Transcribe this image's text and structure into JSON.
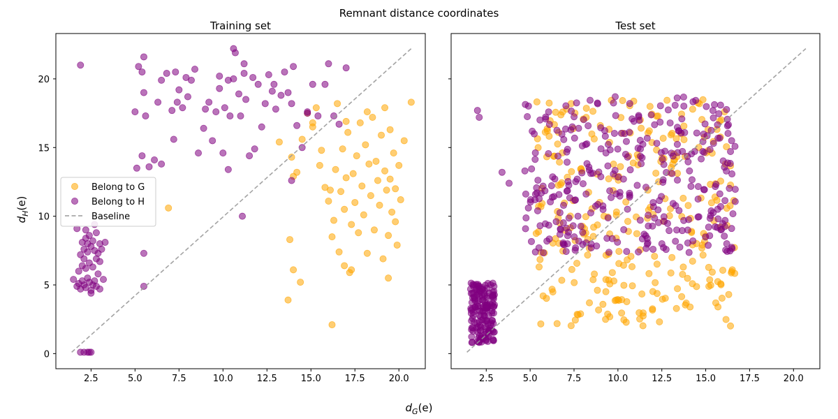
{
  "figure": {
    "suptitle": "Remnant distance coordinates",
    "xlabel": "d_G(e)",
    "ylabel": "d_H(e)"
  },
  "legend": {
    "placement": "center-left",
    "entries": [
      {
        "label": "Belong to G",
        "color": "#FFA500",
        "kind": "marker"
      },
      {
        "label": "Belong to H",
        "color": "#800080",
        "kind": "marker"
      },
      {
        "label": "Baseline",
        "color": "#999999",
        "kind": "dashed-line"
      }
    ]
  },
  "chart_data": [
    {
      "type": "scatter",
      "title": "Training set",
      "xlim": [
        0.5,
        21.5
      ],
      "ylim": [
        -1.1,
        23.3
      ],
      "xticks": [
        "2.5",
        "5.0",
        "7.5",
        "10.0",
        "12.5",
        "15.0",
        "17.5",
        "20.0"
      ],
      "yticks": [
        "0",
        "5",
        "10",
        "15",
        "20"
      ],
      "baseline": {
        "x": [
          1.4,
          20.7
        ],
        "y": [
          0.1,
          22.2
        ]
      },
      "series": [
        {
          "name": "Belong to G",
          "color": "#FFA500",
          "points": [
            [
              6.9,
              10.6
            ],
            [
              13.7,
              3.9
            ],
            [
              13.8,
              8.3
            ],
            [
              14.0,
              6.1
            ],
            [
              14.4,
              5.2
            ],
            [
              16.2,
              2.1
            ],
            [
              13.2,
              15.4
            ],
            [
              13.9,
              14.3
            ],
            [
              14.0,
              12.9
            ],
            [
              14.5,
              15.6
            ],
            [
              14.2,
              13.2
            ],
            [
              14.8,
              17.5
            ],
            [
              15.1,
              16.5
            ],
            [
              15.3,
              17.9
            ],
            [
              15.5,
              13.7
            ],
            [
              15.6,
              14.8
            ],
            [
              15.8,
              12.1
            ],
            [
              16.0,
              11.1
            ],
            [
              16.2,
              8.5
            ],
            [
              16.3,
              9.7
            ],
            [
              16.4,
              13.4
            ],
            [
              16.5,
              18.2
            ],
            [
              16.6,
              7.4
            ],
            [
              16.7,
              11.8
            ],
            [
              16.8,
              14.9
            ],
            [
              16.9,
              10.5
            ],
            [
              17.0,
              12.8
            ],
            [
              17.1,
              16.1
            ],
            [
              17.2,
              5.9
            ],
            [
              17.3,
              9.4
            ],
            [
              17.4,
              13.1
            ],
            [
              17.5,
              11.0
            ],
            [
              17.6,
              14.4
            ],
            [
              17.7,
              8.8
            ],
            [
              17.8,
              16.8
            ],
            [
              17.9,
              12.2
            ],
            [
              18.0,
              10.1
            ],
            [
              18.1,
              15.2
            ],
            [
              18.2,
              7.3
            ],
            [
              18.3,
              13.8
            ],
            [
              18.4,
              11.5
            ],
            [
              18.5,
              17.2
            ],
            [
              18.6,
              9.0
            ],
            [
              18.7,
              14.0
            ],
            [
              18.8,
              12.6
            ],
            [
              18.9,
              10.8
            ],
            [
              19.0,
              15.9
            ],
            [
              19.1,
              6.9
            ],
            [
              19.2,
              13.3
            ],
            [
              19.3,
              11.9
            ],
            [
              19.4,
              8.6
            ],
            [
              19.5,
              16.3
            ],
            [
              19.6,
              10.3
            ],
            [
              19.7,
              14.6
            ],
            [
              19.8,
              12.0
            ],
            [
              19.9,
              7.9
            ],
            [
              20.0,
              13.7
            ],
            [
              20.1,
              11.2
            ],
            [
              20.3,
              15.5
            ],
            [
              20.7,
              18.3
            ],
            [
              19.4,
              5.5
            ],
            [
              17.0,
              16.9
            ],
            [
              18.2,
              17.6
            ],
            [
              16.9,
              6.4
            ],
            [
              17.3,
              6.1
            ],
            [
              19.2,
              17.9
            ],
            [
              19.8,
              9.6
            ],
            [
              16.1,
              11.9
            ],
            [
              15.1,
              16.8
            ],
            [
              19.5,
              12.7
            ]
          ]
        },
        {
          "name": "Belong to H",
          "color": "#800080",
          "points": [
            [
              1.9,
              21.0
            ],
            [
              1.7,
              9.1
            ],
            [
              1.5,
              5.4
            ],
            [
              2.1,
              0.1
            ],
            [
              2.3,
              0.1
            ],
            [
              2.5,
              0.1
            ],
            [
              1.9,
              0.1
            ],
            [
              2.4,
              0.1
            ],
            [
              1.7,
              4.9
            ],
            [
              1.8,
              5.1
            ],
            [
              1.9,
              4.7
            ],
            [
              2.0,
              5.3
            ],
            [
              2.1,
              5.0
            ],
            [
              2.2,
              4.8
            ],
            [
              2.3,
              5.5
            ],
            [
              2.4,
              5.2
            ],
            [
              2.5,
              4.6
            ],
            [
              2.6,
              5.0
            ],
            [
              2.7,
              5.3
            ],
            [
              2.8,
              4.9
            ],
            [
              3.0,
              4.7
            ],
            [
              3.2,
              5.4
            ],
            [
              1.8,
              6.0
            ],
            [
              2.0,
              6.4
            ],
            [
              2.2,
              6.2
            ],
            [
              2.4,
              6.6
            ],
            [
              2.6,
              6.3
            ],
            [
              2.8,
              6.9
            ],
            [
              3.0,
              6.7
            ],
            [
              1.9,
              7.2
            ],
            [
              2.1,
              7.6
            ],
            [
              2.3,
              7.4
            ],
            [
              2.5,
              7.8
            ],
            [
              2.7,
              7.5
            ],
            [
              2.9,
              7.3
            ],
            [
              3.1,
              7.6
            ],
            [
              2.0,
              8.1
            ],
            [
              2.2,
              8.4
            ],
            [
              2.4,
              8.6
            ],
            [
              2.6,
              8.2
            ],
            [
              2.8,
              8.8
            ],
            [
              3.0,
              8.0
            ],
            [
              3.3,
              8.1
            ],
            [
              2.2,
              9.0
            ],
            [
              2.7,
              9.4
            ],
            [
              2.5,
              4.4
            ],
            [
              2.9,
              5.8
            ],
            [
              2.1,
              6.9
            ],
            [
              2.3,
              8.0
            ],
            [
              5.0,
              17.6
            ],
            [
              5.2,
              20.9
            ],
            [
              5.4,
              20.5
            ],
            [
              5.5,
              21.6
            ],
            [
              5.5,
              19.0
            ],
            [
              5.6,
              17.3
            ],
            [
              5.4,
              14.4
            ],
            [
              5.1,
              13.5
            ],
            [
              5.8,
              13.6
            ],
            [
              6.1,
              14.1
            ],
            [
              6.3,
              18.3
            ],
            [
              6.5,
              19.9
            ],
            [
              6.5,
              13.8
            ],
            [
              6.8,
              20.4
            ],
            [
              7.1,
              17.7
            ],
            [
              7.3,
              20.5
            ],
            [
              7.4,
              18.3
            ],
            [
              7.5,
              19.2
            ],
            [
              7.7,
              17.9
            ],
            [
              7.9,
              20.1
            ],
            [
              8.0,
              18.7
            ],
            [
              8.2,
              19.9
            ],
            [
              8.4,
              20.7
            ],
            [
              8.6,
              14.6
            ],
            [
              8.9,
              16.4
            ],
            [
              9.0,
              17.8
            ],
            [
              9.2,
              18.3
            ],
            [
              9.4,
              15.5
            ],
            [
              9.6,
              17.6
            ],
            [
              9.8,
              20.2
            ],
            [
              10.0,
              14.6
            ],
            [
              10.1,
              17.9
            ],
            [
              10.3,
              19.9
            ],
            [
              10.4,
              17.3
            ],
            [
              10.6,
              20.0
            ],
            [
              10.7,
              21.9
            ],
            [
              10.9,
              18.9
            ],
            [
              11.0,
              17.3
            ],
            [
              11.2,
              20.4
            ],
            [
              11.3,
              18.5
            ],
            [
              11.5,
              14.4
            ],
            [
              11.7,
              20.1
            ],
            [
              11.8,
              14.9
            ],
            [
              12.0,
              19.6
            ],
            [
              12.2,
              16.5
            ],
            [
              12.4,
              18.2
            ],
            [
              12.6,
              20.3
            ],
            [
              12.8,
              19.1
            ],
            [
              13.0,
              17.8
            ],
            [
              13.3,
              18.8
            ],
            [
              13.5,
              20.5
            ],
            [
              13.7,
              19.0
            ],
            [
              13.9,
              18.2
            ],
            [
              14.0,
              20.9
            ],
            [
              14.2,
              16.6
            ],
            [
              14.5,
              15.0
            ],
            [
              14.8,
              17.5
            ],
            [
              15.1,
              19.6
            ],
            [
              15.4,
              17.3
            ],
            [
              15.8,
              19.6
            ],
            [
              16.0,
              21.1
            ],
            [
              16.3,
              17.3
            ],
            [
              16.6,
              16.7
            ],
            [
              17.0,
              20.8
            ],
            [
              10.6,
              22.2
            ],
            [
              11.1,
              10.0
            ],
            [
              5.5,
              4.9
            ],
            [
              5.5,
              7.3
            ],
            [
              7.2,
              15.6
            ],
            [
              10.3,
              13.4
            ],
            [
              11.2,
              21.1
            ],
            [
              9.8,
              19.3
            ],
            [
              13.9,
              12.6
            ],
            [
              12.9,
              19.6
            ],
            [
              14.8,
              17.6
            ]
          ]
        }
      ]
    },
    {
      "type": "scatter",
      "title": "Test set",
      "xlim": [
        0.5,
        21.5
      ],
      "ylim": [
        -1.1,
        23.3
      ],
      "xticks": [
        "2.5",
        "5.0",
        "7.5",
        "10.0",
        "12.5",
        "15.0",
        "17.5",
        "20.0"
      ],
      "yticks": [],
      "baseline": {
        "x": [
          1.4,
          20.7
        ],
        "y": [
          0.1,
          22.2
        ]
      },
      "series": [
        {
          "name": "Belong to G",
          "color": "#FFA500",
          "cluster": {
            "seed": 7,
            "count": 300,
            "x": [
              5.3,
              16.7
            ],
            "y": [
              2.0,
              18.5
            ]
          }
        },
        {
          "name": "Belong to H",
          "color": "#800080",
          "cluster": {
            "seed": 13,
            "count": 330,
            "x": [
              4.7,
              16.7
            ],
            "y": [
              7.3,
              18.7
            ]
          },
          "low_cluster": {
            "seed": 29,
            "count": 160,
            "x": [
              1.6,
              3.0
            ],
            "y": [
              0.8,
              5.2
            ]
          },
          "points": [
            [
              2.0,
              17.7
            ],
            [
              2.1,
              17.2
            ],
            [
              3.4,
              13.2
            ],
            [
              3.8,
              12.4
            ],
            [
              4.7,
              13.3
            ],
            [
              4.9,
              10.6
            ],
            [
              5.5,
              7.7
            ],
            [
              5.3,
              7.4
            ]
          ]
        }
      ]
    }
  ]
}
